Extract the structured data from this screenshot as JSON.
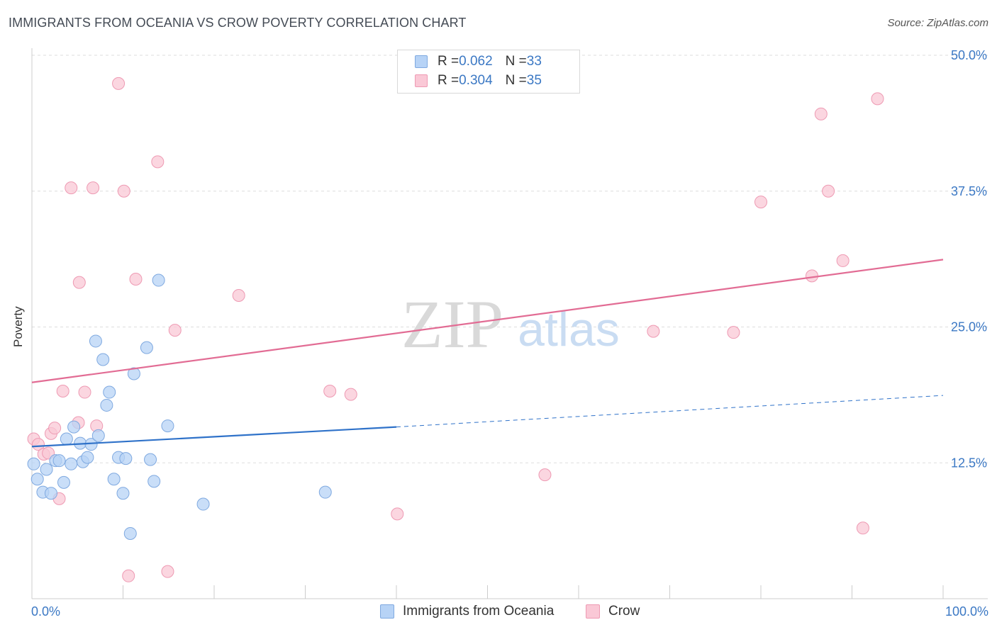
{
  "title": "IMMIGRANTS FROM OCEANIA VS CROW POVERTY CORRELATION CHART",
  "source": "Source: ZipAtlas.com",
  "watermark": {
    "zip": "ZIP",
    "atlas": "atlas"
  },
  "legend_top": [
    {
      "r_label": "R = ",
      "r_value": "0.062",
      "n_label": "N = ",
      "n_value": "33"
    },
    {
      "r_label": "R = ",
      "r_value": "0.304",
      "n_label": "N = ",
      "n_value": "35"
    }
  ],
  "colors": {
    "blue_fill": "#b7d3f6",
    "blue_stroke": "#7fa9e0",
    "blue_line": "#2f72c9",
    "pink_fill": "#fac8d6",
    "pink_stroke": "#ee9ab3",
    "pink_line": "#e26c94",
    "axis_text": "#3b78c4",
    "grid": "#dddddd"
  },
  "chart_data": {
    "type": "scatter",
    "title": "IMMIGRANTS FROM OCEANIA VS CROW POVERTY CORRELATION CHART",
    "xlabel": "",
    "ylabel": "Poverty",
    "xlim": [
      0,
      100
    ],
    "ylim": [
      0,
      50
    ],
    "x_tick_labels": [
      "0.0%",
      "100.0%"
    ],
    "y_ticks": [
      12.5,
      25.0,
      37.5,
      50.0
    ],
    "y_tick_labels": [
      "12.5%",
      "25.0%",
      "37.5%",
      "50.0%"
    ],
    "grid": true,
    "series": [
      {
        "name": "Immigrants from Oceania",
        "color": "#b7d3f6",
        "r": 0.062,
        "n": 33,
        "points": [
          [
            0.2,
            12.4
          ],
          [
            0.6,
            11.0
          ],
          [
            1.2,
            9.8
          ],
          [
            1.6,
            11.9
          ],
          [
            2.1,
            9.7
          ],
          [
            2.6,
            12.7
          ],
          [
            3.0,
            12.7
          ],
          [
            3.5,
            10.7
          ],
          [
            3.8,
            14.7
          ],
          [
            4.3,
            12.4
          ],
          [
            4.6,
            15.8
          ],
          [
            5.3,
            14.3
          ],
          [
            5.6,
            12.6
          ],
          [
            6.1,
            13.0
          ],
          [
            6.5,
            14.2
          ],
          [
            7.0,
            23.7
          ],
          [
            7.3,
            15.0
          ],
          [
            7.8,
            22.0
          ],
          [
            8.2,
            17.8
          ],
          [
            8.5,
            19.0
          ],
          [
            9.0,
            11.0
          ],
          [
            9.5,
            13.0
          ],
          [
            10.0,
            9.7
          ],
          [
            10.3,
            12.9
          ],
          [
            10.8,
            6.0
          ],
          [
            11.2,
            20.7
          ],
          [
            12.6,
            23.1
          ],
          [
            13.0,
            12.8
          ],
          [
            13.4,
            10.8
          ],
          [
            13.9,
            29.3
          ],
          [
            14.9,
            15.9
          ],
          [
            18.8,
            8.7
          ],
          [
            32.2,
            9.8
          ]
        ],
        "trend": {
          "x0": 0,
          "y0": 14.0,
          "x1": 40,
          "y1": 15.8,
          "dashed_to_x": 100,
          "dashed_to_y": 18.7
        }
      },
      {
        "name": "Crow",
        "color": "#fac8d6",
        "r": 0.304,
        "n": 35,
        "points": [
          [
            0.2,
            14.7
          ],
          [
            0.7,
            14.2
          ],
          [
            1.3,
            13.3
          ],
          [
            1.8,
            13.4
          ],
          [
            2.1,
            15.2
          ],
          [
            2.5,
            15.7
          ],
          [
            3.0,
            9.2
          ],
          [
            3.4,
            19.1
          ],
          [
            4.3,
            37.8
          ],
          [
            5.1,
            16.2
          ],
          [
            5.2,
            29.1
          ],
          [
            5.8,
            19.0
          ],
          [
            6.7,
            37.8
          ],
          [
            7.1,
            15.9
          ],
          [
            9.5,
            47.4
          ],
          [
            10.1,
            37.5
          ],
          [
            10.6,
            2.1
          ],
          [
            11.4,
            29.4
          ],
          [
            13.8,
            40.2
          ],
          [
            14.9,
            2.5
          ],
          [
            15.7,
            24.7
          ],
          [
            22.7,
            27.9
          ],
          [
            32.7,
            19.1
          ],
          [
            35.0,
            18.8
          ],
          [
            40.1,
            7.8
          ],
          [
            56.3,
            11.4
          ],
          [
            68.2,
            24.6
          ],
          [
            77.0,
            24.5
          ],
          [
            80.0,
            36.5
          ],
          [
            85.6,
            29.7
          ],
          [
            86.6,
            44.6
          ],
          [
            87.4,
            37.5
          ],
          [
            89.0,
            31.1
          ],
          [
            91.2,
            6.5
          ],
          [
            92.8,
            46.0
          ]
        ],
        "trend": {
          "x0": 0,
          "y0": 19.9,
          "x1": 100,
          "y1": 31.2
        }
      }
    ]
  },
  "legend_bottom": [
    {
      "label": "Immigrants from Oceania"
    },
    {
      "label": "Crow"
    }
  ]
}
